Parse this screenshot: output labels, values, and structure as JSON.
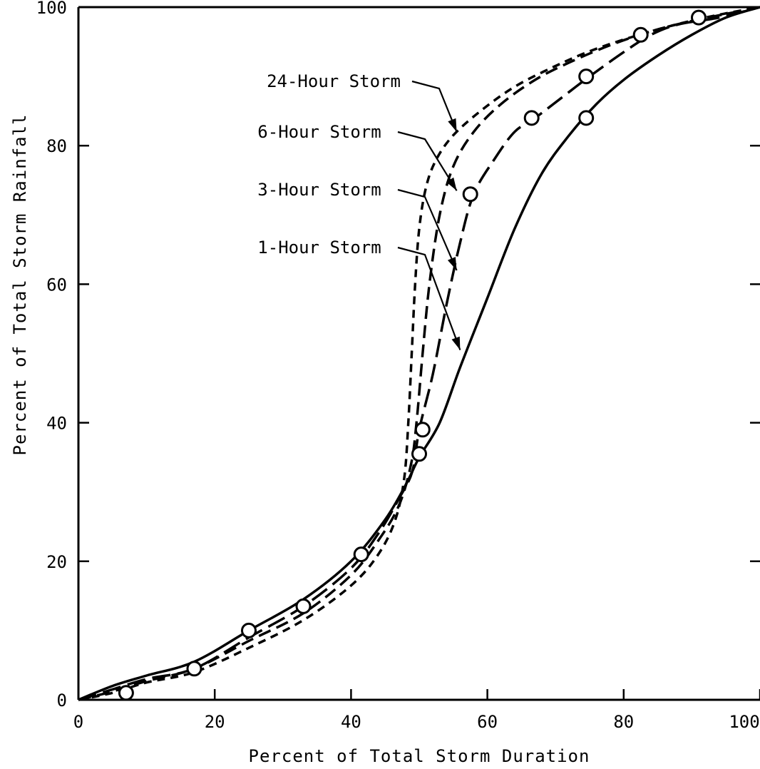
{
  "chart_data": {
    "type": "line",
    "title": "",
    "xlabel": "Percent of Total Storm Duration",
    "ylabel": "Percent of Total Storm Rainfall",
    "xlim": [
      0,
      100
    ],
    "ylim": [
      0,
      100
    ],
    "x_ticks": [
      "0",
      "20",
      "40",
      "60",
      "80",
      "100"
    ],
    "y_ticks": [
      "0",
      "20",
      "40",
      "60",
      "80",
      "100"
    ],
    "grid": false,
    "legend": "none",
    "series": [
      {
        "name": "1-Hour Storm",
        "color": "#000000",
        "dash": "solid",
        "points": [
          [
            0,
            0
          ],
          [
            5,
            2
          ],
          [
            10,
            3.5
          ],
          [
            17,
            5.5
          ],
          [
            25,
            10
          ],
          [
            33,
            14.5
          ],
          [
            40,
            20
          ],
          [
            45,
            26
          ],
          [
            48,
            31
          ],
          [
            50,
            35
          ],
          [
            53,
            40
          ],
          [
            56,
            48
          ],
          [
            60,
            58
          ],
          [
            64,
            68
          ],
          [
            68,
            76
          ],
          [
            72,
            81.5
          ],
          [
            76,
            86
          ],
          [
            80,
            89.5
          ],
          [
            85,
            93
          ],
          [
            90,
            96
          ],
          [
            95,
            98.5
          ],
          [
            100,
            100
          ]
        ]
      },
      {
        "name": "3-Hour Storm",
        "color": "#000000",
        "dash": "long",
        "points": [
          [
            0,
            0
          ],
          [
            5,
            1.5
          ],
          [
            10,
            3
          ],
          [
            17,
            4.5
          ],
          [
            25,
            9
          ],
          [
            33,
            13.5
          ],
          [
            40,
            19
          ],
          [
            44,
            24
          ],
          [
            47,
            29
          ],
          [
            49,
            33
          ],
          [
            50,
            39
          ],
          [
            52,
            47
          ],
          [
            54,
            57
          ],
          [
            56,
            66
          ],
          [
            58,
            73
          ],
          [
            61,
            78
          ],
          [
            64,
            82
          ],
          [
            67,
            84
          ],
          [
            71,
            87
          ],
          [
            75,
            90
          ],
          [
            80,
            93.5
          ],
          [
            84,
            96
          ],
          [
            88,
            97.5
          ],
          [
            94,
            98.5
          ],
          [
            100,
            100
          ]
        ]
      },
      {
        "name": "6-Hour Storm",
        "color": "#000000",
        "dash": "medium",
        "points": [
          [
            0,
            0
          ],
          [
            5,
            1.2
          ],
          [
            10,
            2.7
          ],
          [
            17,
            4.5
          ],
          [
            25,
            8.5
          ],
          [
            33,
            12.5
          ],
          [
            40,
            18
          ],
          [
            44,
            23
          ],
          [
            47,
            28
          ],
          [
            48.8,
            34
          ],
          [
            49.6,
            40
          ],
          [
            50.5,
            50
          ],
          [
            51.5,
            60
          ],
          [
            53,
            70
          ],
          [
            55,
            77
          ],
          [
            58,
            82
          ],
          [
            62,
            86
          ],
          [
            67,
            89.5
          ],
          [
            72,
            92
          ],
          [
            78,
            94.5
          ],
          [
            84,
            96.5
          ],
          [
            90,
            98
          ],
          [
            100,
            100
          ]
        ]
      },
      {
        "name": "24-Hour Storm",
        "color": "#000000",
        "dash": "short",
        "points": [
          [
            0,
            0
          ],
          [
            5,
            1
          ],
          [
            10,
            2.5
          ],
          [
            17,
            4
          ],
          [
            25,
            7.5
          ],
          [
            33,
            11.5
          ],
          [
            40,
            16.5
          ],
          [
            44,
            21
          ],
          [
            46.5,
            26
          ],
          [
            47.8,
            32
          ],
          [
            48.4,
            40
          ],
          [
            48.9,
            50
          ],
          [
            49.4,
            60
          ],
          [
            50,
            68
          ],
          [
            51,
            74
          ],
          [
            52.5,
            78
          ],
          [
            55,
            81.5
          ],
          [
            59,
            85
          ],
          [
            64,
            88.5
          ],
          [
            70,
            91.5
          ],
          [
            76,
            94
          ],
          [
            84,
            96.5
          ],
          [
            92,
            98.5
          ],
          [
            100,
            100
          ]
        ]
      }
    ],
    "markers": [
      [
        7,
        1
      ],
      [
        17,
        4.5
      ],
      [
        25,
        10
      ],
      [
        33,
        13.5
      ],
      [
        41.5,
        21
      ],
      [
        50,
        35.5
      ],
      [
        50.5,
        39
      ],
      [
        57.5,
        73
      ],
      [
        66.5,
        84
      ],
      [
        74.5,
        84
      ],
      [
        74.5,
        90
      ],
      [
        82.5,
        96
      ],
      [
        91,
        98.5
      ]
    ],
    "annotations": [
      {
        "text": "24-Hour Storm",
        "target": [
          55.5,
          82
        ]
      },
      {
        "text": "6-Hour Storm",
        "target": [
          55.5,
          73.5
        ]
      },
      {
        "text": "3-Hour Storm",
        "target": [
          55.5,
          62
        ]
      },
      {
        "text": "1-Hour Storm",
        "target": [
          56,
          50.5
        ]
      }
    ]
  }
}
